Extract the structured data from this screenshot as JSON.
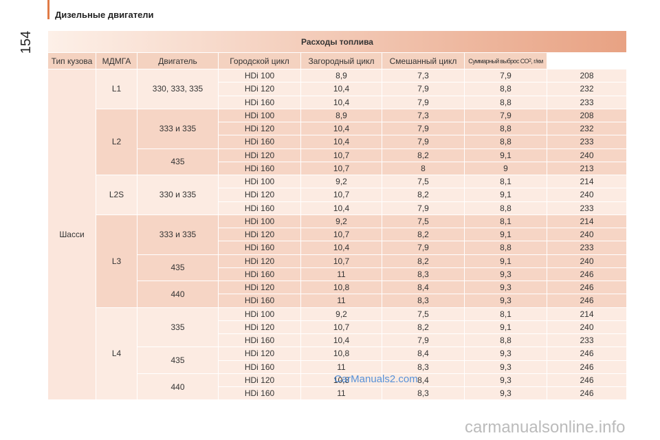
{
  "header": {
    "section": "Дизельные двигатели",
    "page_number": "154"
  },
  "table": {
    "title": "Расходы топлива",
    "columns": [
      "Тип кузова",
      "МДМГА",
      "Двигатель",
      "Городской цикл",
      "Загородный цикл",
      "Смешанный цикл",
      {
        "text": "Суммарный выброс CO",
        "sub": "2",
        "tail": ", г/км"
      }
    ],
    "body": "Шасси",
    "groups": [
      {
        "name": "L1",
        "subgroups": [
          {
            "mdmga": "330, 333, 335",
            "rows": [
              [
                "HDi 100",
                "8,9",
                "7,3",
                "7,9",
                "208"
              ],
              [
                "HDi 120",
                "10,4",
                "7,9",
                "8,8",
                "232"
              ],
              [
                "HDi 160",
                "10,4",
                "7,9",
                "8,8",
                "233"
              ]
            ]
          }
        ]
      },
      {
        "name": "L2",
        "subgroups": [
          {
            "mdmga": "333 и 335",
            "rows": [
              [
                "HDi 100",
                "8,9",
                "7,3",
                "7,9",
                "208"
              ],
              [
                "HDi 120",
                "10,4",
                "7,9",
                "8,8",
                "232"
              ],
              [
                "HDi 160",
                "10,4",
                "7,9",
                "8,8",
                "233"
              ]
            ]
          },
          {
            "mdmga": "435",
            "rows": [
              [
                "HDi 120",
                "10,7",
                "8,2",
                "9,1",
                "240"
              ],
              [
                "HDi 160",
                "10,7",
                "8",
                "9",
                "213"
              ]
            ]
          }
        ]
      },
      {
        "name": "L2S",
        "subgroups": [
          {
            "mdmga": "330 и 335",
            "rows": [
              [
                "HDi 100",
                "9,2",
                "7,5",
                "8,1",
                "214"
              ],
              [
                "HDi 120",
                "10,7",
                "8,2",
                "9,1",
                "240"
              ],
              [
                "HDi 160",
                "10,4",
                "7,9",
                "8,8",
                "233"
              ]
            ]
          }
        ]
      },
      {
        "name": "L3",
        "subgroups": [
          {
            "mdmga": "333 и 335",
            "rows": [
              [
                "HDi 100",
                "9,2",
                "7,5",
                "8,1",
                "214"
              ],
              [
                "HDi 120",
                "10,7",
                "8,2",
                "9,1",
                "240"
              ],
              [
                "HDi 160",
                "10,4",
                "7,9",
                "8,8",
                "233"
              ]
            ]
          },
          {
            "mdmga": "435",
            "rows": [
              [
                "HDi 120",
                "10,7",
                "8,2",
                "9,1",
                "240"
              ],
              [
                "HDi 160",
                "11",
                "8,3",
                "9,3",
                "246"
              ]
            ]
          },
          {
            "mdmga": "440",
            "rows": [
              [
                "HDi 120",
                "10,8",
                "8,4",
                "9,3",
                "246"
              ],
              [
                "HDi 160",
                "11",
                "8,3",
                "9,3",
                "246"
              ]
            ]
          }
        ]
      },
      {
        "name": "L4",
        "subgroups": [
          {
            "mdmga": "335",
            "rows": [
              [
                "HDi 100",
                "9,2",
                "7,5",
                "8,1",
                "214"
              ],
              [
                "HDi 120",
                "10,7",
                "8,2",
                "9,1",
                "240"
              ],
              [
                "HDi 160",
                "10,4",
                "7,9",
                "8,8",
                "233"
              ]
            ]
          },
          {
            "mdmga": "435",
            "rows": [
              [
                "HDi 120",
                "10,8",
                "8,4",
                "9,3",
                "246"
              ],
              [
                "HDi 160",
                "11",
                "8,3",
                "9,3",
                "246"
              ]
            ]
          },
          {
            "mdmga": "440",
            "rows": [
              [
                "HDi 120",
                "10,8",
                "8,4",
                "9,3",
                "246"
              ],
              [
                "HDi 160",
                "11",
                "8,3",
                "9,3",
                "246"
              ]
            ]
          }
        ]
      }
    ]
  },
  "watermarks": [
    "CarManuals2.com",
    "carmanualsonline.info"
  ]
}
